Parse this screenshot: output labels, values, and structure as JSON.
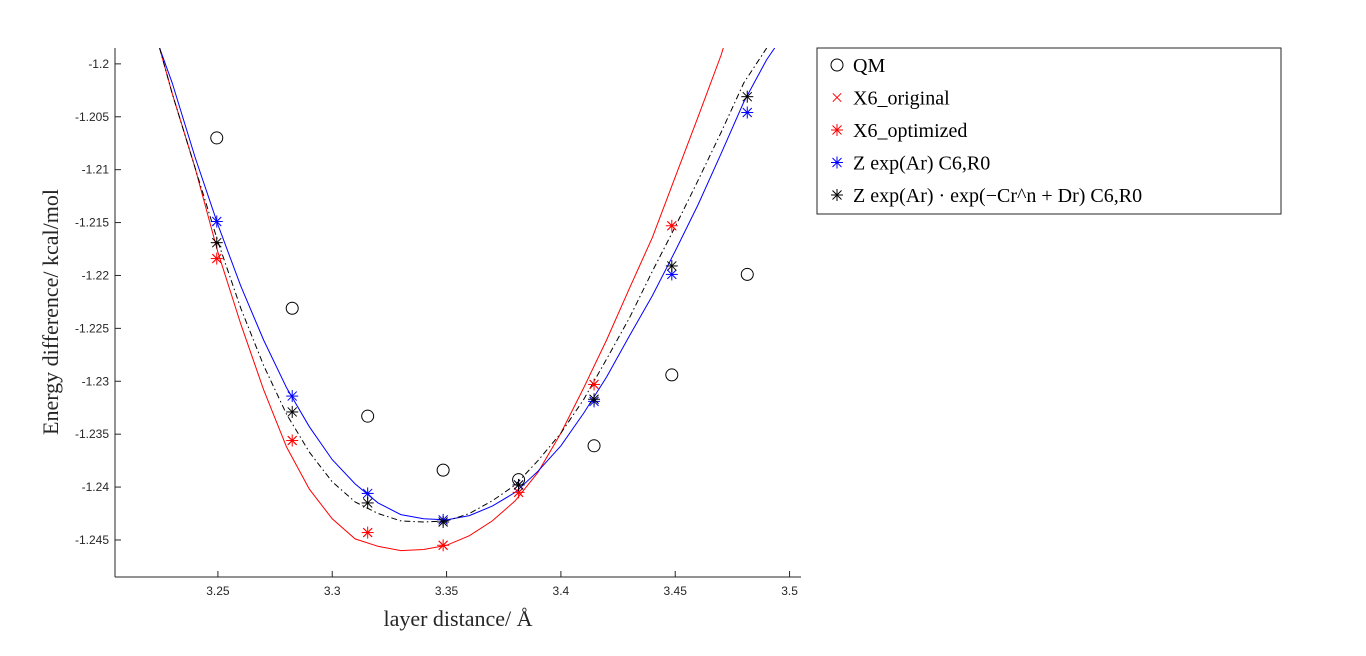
{
  "chart_data": {
    "type": "scatter",
    "xlabel": "layer distance/ Å",
    "ylabel": "Energy difference/ kcal/mol",
    "xlim": [
      3.205,
      3.505
    ],
    "ylim": [
      -1.2485,
      -1.1985
    ],
    "x_ticks": [
      "3.25",
      "3.3",
      "3.35",
      "3.4",
      "3.45",
      "3.5"
    ],
    "x_tick_values": [
      3.25,
      3.3,
      3.35,
      3.4,
      3.45,
      3.5
    ],
    "y_ticks": [
      "-1.2",
      "-1.205",
      "-1.21",
      "-1.215",
      "-1.22",
      "-1.225",
      "-1.23",
      "-1.235",
      "-1.24",
      "-1.245"
    ],
    "y_tick_values": [
      -1.2,
      -1.205,
      -1.21,
      -1.215,
      -1.22,
      -1.225,
      -1.23,
      -1.235,
      -1.24,
      -1.245
    ],
    "grid": false,
    "legend_position": "top-right-outside",
    "series": [
      {
        "name": "QM",
        "marker": "circle",
        "color": "#000000",
        "x": [
          3.2495,
          3.2825,
          3.3155,
          3.3485,
          3.3815,
          3.4145,
          3.4485,
          3.4815
        ],
        "y": [
          -1.207,
          -1.2231,
          -1.2333,
          -1.2384,
          -1.2393,
          -1.2361,
          -1.2294,
          -1.2199
        ]
      },
      {
        "name": "X6_original",
        "marker": "x",
        "color": "#ff0000",
        "x": [
          3.2495,
          3.2825,
          3.3155,
          3.3485,
          3.3815,
          3.4145,
          3.4485
        ],
        "y": [
          -1.2184,
          -1.2356,
          -1.2443,
          -1.2455,
          -1.2405,
          -1.2303,
          -1.2153
        ]
      },
      {
        "name": "X6_optimized",
        "marker": "asterisk",
        "color": "#ff0000",
        "x": [
          3.2495,
          3.2825,
          3.3155,
          3.3485,
          3.3815,
          3.4145,
          3.4485
        ],
        "y": [
          -1.2184,
          -1.2356,
          -1.2443,
          -1.2455,
          -1.2405,
          -1.2303,
          -1.2153
        ],
        "fit_line": true,
        "fit_x": [
          3.2245,
          3.23,
          3.24,
          3.25,
          3.26,
          3.27,
          3.28,
          3.29,
          3.3,
          3.31,
          3.32,
          3.33,
          3.34,
          3.35,
          3.36,
          3.37,
          3.38,
          3.39,
          3.4,
          3.41,
          3.42,
          3.43,
          3.44,
          3.45,
          3.46,
          3.47,
          3.471
        ],
        "fit_y": [
          -1.1985,
          -1.2028,
          -1.2098,
          -1.2178,
          -1.2246,
          -1.2308,
          -1.2362,
          -1.2402,
          -1.243,
          -1.2449,
          -1.2456,
          -1.246,
          -1.2459,
          -1.2455,
          -1.2446,
          -1.2432,
          -1.2413,
          -1.2386,
          -1.2349,
          -1.2306,
          -1.2261,
          -1.2212,
          -1.2164,
          -1.2107,
          -1.205,
          -1.1992,
          -1.1985
        ]
      },
      {
        "name": "Z exp(Ar) C6,R0",
        "marker": "asterisk",
        "color": "#0000ff",
        "x": [
          3.2495,
          3.2825,
          3.3155,
          3.3485,
          3.3815,
          3.4145,
          3.4485,
          3.4815
        ],
        "y": [
          -1.2149,
          -1.2314,
          -1.2406,
          -1.2431,
          -1.2398,
          -1.2319,
          -1.2199,
          -1.2046
        ],
        "fit_line": true,
        "fit_x": [
          3.2245,
          3.23,
          3.24,
          3.25,
          3.26,
          3.27,
          3.28,
          3.29,
          3.3,
          3.31,
          3.32,
          3.33,
          3.34,
          3.35,
          3.36,
          3.37,
          3.38,
          3.39,
          3.4,
          3.41,
          3.42,
          3.43,
          3.44,
          3.45,
          3.46,
          3.47,
          3.48,
          3.49,
          3.4935
        ],
        "fit_y": [
          -1.1985,
          -1.2018,
          -1.2088,
          -1.2152,
          -1.221,
          -1.2261,
          -1.2306,
          -1.2343,
          -1.2374,
          -1.2397,
          -1.2415,
          -1.2426,
          -1.243,
          -1.2431,
          -1.2427,
          -1.2418,
          -1.2405,
          -1.2385,
          -1.2361,
          -1.233,
          -1.2296,
          -1.2257,
          -1.2219,
          -1.2177,
          -1.2133,
          -1.2085,
          -1.2036,
          -1.1996,
          -1.1985
        ]
      },
      {
        "name": "Z exp(Ar) · exp(−Cr^n + Dr) C6,R0",
        "marker": "asterisk",
        "color": "#000000",
        "x": [
          3.2495,
          3.2825,
          3.3155,
          3.3485,
          3.3815,
          3.4145,
          3.4485,
          3.4815
        ],
        "y": [
          -1.2169,
          -1.2329,
          -1.2415,
          -1.2433,
          -1.2398,
          -1.2317,
          -1.2191,
          -1.2031
        ],
        "fit_line": true,
        "fit_dash": "dashdot",
        "fit_x": [
          3.2245,
          3.23,
          3.24,
          3.25,
          3.26,
          3.27,
          3.28,
          3.29,
          3.3,
          3.31,
          3.32,
          3.33,
          3.34,
          3.35,
          3.36,
          3.37,
          3.38,
          3.39,
          3.4,
          3.41,
          3.42,
          3.43,
          3.44,
          3.45,
          3.46,
          3.47,
          3.48,
          3.49
        ],
        "fit_y": [
          -1.1985,
          -1.2028,
          -1.2098,
          -1.2168,
          -1.2231,
          -1.2285,
          -1.2331,
          -1.2367,
          -1.2395,
          -1.2414,
          -1.2425,
          -1.2432,
          -1.2433,
          -1.2432,
          -1.2425,
          -1.2413,
          -1.2398,
          -1.2375,
          -1.2349,
          -1.2317,
          -1.2279,
          -1.224,
          -1.2196,
          -1.2154,
          -1.211,
          -1.2065,
          -1.2018,
          -1.1985
        ]
      }
    ]
  },
  "legend": {
    "items": [
      {
        "label": "QM",
        "marker": "circle",
        "color": "#000000"
      },
      {
        "label": "X6_original",
        "marker": "x",
        "color": "#ff0000"
      },
      {
        "label": "X6_optimized",
        "marker": "asterisk",
        "color": "#ff0000"
      },
      {
        "label": "Z exp(Ar) C6,R0",
        "marker": "asterisk",
        "color": "#0000ff"
      },
      {
        "label": "Z exp(Ar) · exp(−Cr^n + Dr) C6,R0",
        "marker": "asterisk",
        "color": "#000000"
      }
    ]
  }
}
